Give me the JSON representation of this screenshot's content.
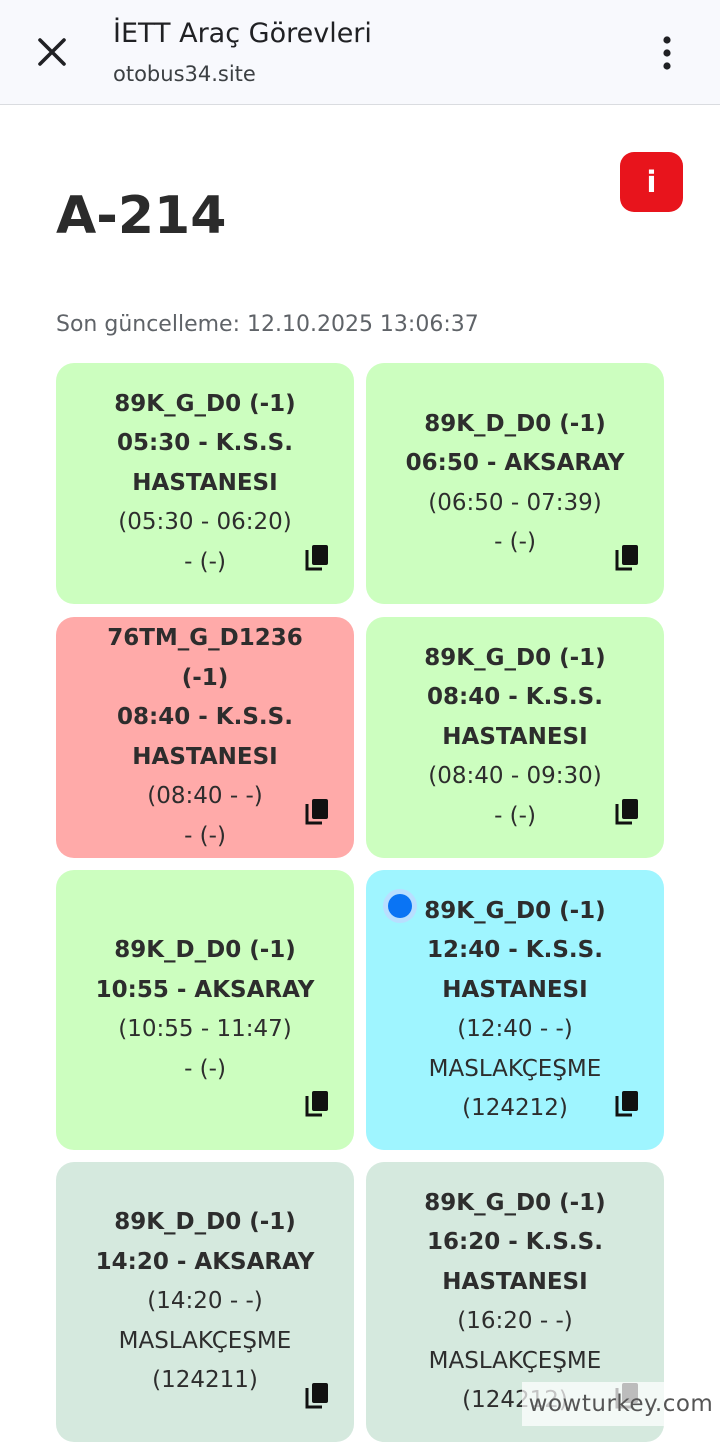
{
  "browser": {
    "title": "İETT Araç Görevleri",
    "url": "otobus34.site"
  },
  "page": {
    "title": "A-214",
    "info_label": "i",
    "updated": "Son güncelleme: 12.10.2025 13:06:37"
  },
  "cards": [
    {
      "route": "89K_G_D0 (-1)",
      "line1": "05:30 - K.S.S.",
      "line2": "HASTANESI",
      "times": "(05:30 - 06:20)",
      "stop": "- (-)",
      "color": "#ccfebf"
    },
    {
      "route": "89K_D_D0 (-1)",
      "line1": "06:50 - AKSARAY",
      "times": "(06:50 - 07:39)",
      "stop": "- (-)",
      "color": "#ccfebf"
    },
    {
      "route": "76TM_G_D1236 (-1)",
      "line1": "08:40 - K.S.S.",
      "line2": "HASTANESI",
      "times": "(08:40 - -)",
      "stop": "- (-)",
      "color": "#ffaaa9"
    },
    {
      "route": "89K_G_D0 (-1)",
      "line1": "08:40 - K.S.S.",
      "line2": "HASTANESI",
      "times": "(08:40 - 09:30)",
      "stop": "- (-)",
      "color": "#ccfebf"
    },
    {
      "route": "89K_D_D0 (-1)",
      "line1": "10:55 - AKSARAY",
      "times": "(10:55 - 11:47)",
      "stop": "- (-)",
      "color": "#ccfebf"
    },
    {
      "route": "89K_G_D0 (-1)",
      "line1": "12:40 - K.S.S.",
      "line2": "HASTANESI",
      "times": "(12:40 - -)",
      "stop": "MASLAKÇEŞME",
      "stop_code": "(124212)",
      "color": "#9ff5ff",
      "active": true
    },
    {
      "route": "89K_D_D0 (-1)",
      "line1": "14:20 - AKSARAY",
      "times": "(14:20 - -)",
      "stop": "MASLAKÇEŞME",
      "stop_code": "(124211)",
      "color": "#d5e9de"
    },
    {
      "route": "89K_G_D0 (-1)",
      "line1": "16:20 - K.S.S.",
      "line2": "HASTANESI",
      "times": "(16:20 - -)",
      "stop": "MASLAKÇEŞME",
      "stop_code": "(124212)",
      "color": "#d5e9de"
    }
  ],
  "watermark": "wowturkey.com",
  "icons": {
    "close": "close-icon",
    "menu": "more-vert-icon",
    "copy": "copy-icon",
    "info": "info-icon"
  }
}
